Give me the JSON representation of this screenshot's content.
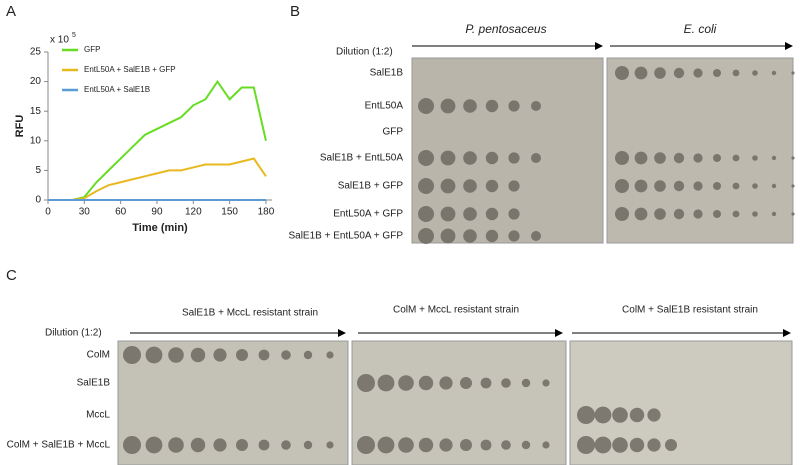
{
  "panel_labels": [
    "A",
    "B",
    "C"
  ],
  "chart_data": {
    "type": "line",
    "scale_label": {
      "base": "x 10",
      "exponent": "5"
    },
    "xlabel": "Time (min)",
    "ylabel": "RFU",
    "x": [
      0,
      10,
      20,
      30,
      40,
      50,
      60,
      70,
      80,
      90,
      100,
      110,
      120,
      130,
      140,
      150,
      160,
      170,
      180
    ],
    "series": [
      {
        "name": "GFP",
        "color": "#66dd22",
        "values": [
          0,
          0,
          0,
          0.5,
          3,
          5,
          7,
          9,
          11,
          12,
          13,
          14,
          16,
          17,
          20,
          17,
          19,
          19,
          10
        ]
      },
      {
        "name": "EntL50A + SalE1B + GFP",
        "color": "#e8b820",
        "values": [
          0,
          0,
          0,
          0.3,
          1.5,
          2.5,
          3,
          3.5,
          4,
          4.5,
          5,
          5,
          5.5,
          6,
          6,
          6,
          6.5,
          7,
          4
        ]
      },
      {
        "name": "EntL50A + SalE1B",
        "color": "#5b9bd5",
        "values": [
          0,
          0,
          0,
          0,
          0,
          0,
          0,
          0,
          0,
          0,
          0,
          0,
          0,
          0,
          0,
          0,
          0,
          0,
          0
        ]
      }
    ],
    "xlim": [
      0,
      185
    ],
    "xticks": [
      0,
      30,
      60,
      90,
      120,
      150,
      180
    ],
    "ylim": [
      0,
      25
    ],
    "yticks": [
      0,
      5,
      10,
      15,
      20,
      25
    ]
  },
  "panel_b": {
    "dilution": "Dilution (1:2)",
    "columns": [
      "P. pentosaceus",
      "E. coli"
    ],
    "rows": [
      "SalE1B",
      "EntL50A",
      "GFP",
      "SalE1B + EntL50A",
      "SalE1B + GFP",
      "EntL50A + GFP",
      "SalE1B + EntL50A + GFP"
    ]
  },
  "panel_c": {
    "dilution": "Dilution (1:2)",
    "columns": [
      "SalE1B +  MccL resistant strain",
      "ColM +  MccL  resistant  strain",
      "ColM +  SalE1B  resistant strain"
    ],
    "rows": [
      "ColM",
      "SalE1B",
      "MccL",
      "ColM + SalE1B + MccL"
    ]
  }
}
